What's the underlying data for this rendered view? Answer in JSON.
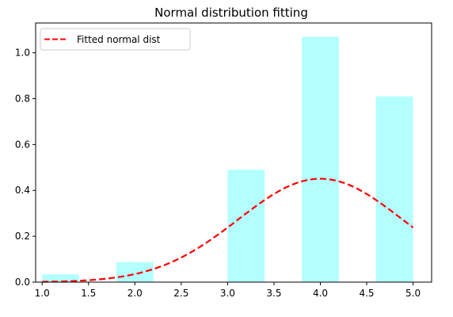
{
  "chart_data": {
    "type": "bar",
    "title": "Normal distribution fitting",
    "xlabel": "",
    "ylabel": "",
    "xlim": [
      0.93,
      5.2
    ],
    "ylim": [
      0,
      1.13
    ],
    "x_ticks": [
      "1.0",
      "1.5",
      "2.0",
      "2.5",
      "3.0",
      "3.5",
      "4.0",
      "4.5",
      "5.0"
    ],
    "y_ticks": [
      "0.0",
      "0.2",
      "0.4",
      "0.6",
      "0.8",
      "1.0"
    ],
    "grid": false,
    "legend_position": "upper-left",
    "histogram": {
      "bar_color": "#b3ffff",
      "bins": [
        {
          "x_start": 1.0,
          "x_end": 1.4,
          "value": 0.034
        },
        {
          "x_start": 1.8,
          "x_end": 2.2,
          "value": 0.087
        },
        {
          "x_start": 3.0,
          "x_end": 3.4,
          "value": 0.49
        },
        {
          "x_start": 3.8,
          "x_end": 4.2,
          "value": 1.07
        },
        {
          "x_start": 4.6,
          "x_end": 5.0,
          "value": 0.81
        }
      ]
    },
    "series": [
      {
        "name": "Fitted normal dist",
        "type": "line",
        "style": "dashed",
        "color": "#ff0000",
        "distribution": {
          "mean": 4.0,
          "std": 0.885,
          "x_start": 1.0,
          "x_end": 5.0
        }
      }
    ]
  }
}
